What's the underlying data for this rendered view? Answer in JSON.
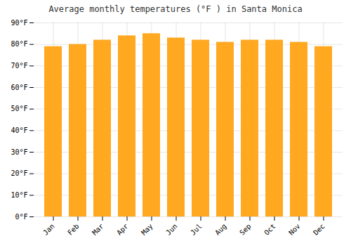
{
  "chart_data": {
    "type": "bar",
    "title": "Average monthly temperatures (°F ) in Santa Monica",
    "categories": [
      "Jan",
      "Feb",
      "Mar",
      "Apr",
      "May",
      "Jun",
      "Jul",
      "Aug",
      "Sep",
      "Oct",
      "Nov",
      "Dec"
    ],
    "values": [
      79,
      80,
      82,
      84,
      85,
      83,
      82,
      81,
      82,
      82,
      81,
      79
    ],
    "color": "#FFA820",
    "ylim": [
      0,
      90
    ],
    "yticks": [
      {
        "value": 0,
        "label": "0°F"
      },
      {
        "value": 10,
        "label": "10°F"
      },
      {
        "value": 20,
        "label": "20°F"
      },
      {
        "value": 30,
        "label": "30°F"
      },
      {
        "value": 40,
        "label": "40°F"
      },
      {
        "value": 50,
        "label": "50°F"
      },
      {
        "value": 60,
        "label": "60°F"
      },
      {
        "value": 70,
        "label": "70°F"
      },
      {
        "value": 80,
        "label": "80°F"
      },
      {
        "value": 90,
        "label": "90°F"
      }
    ],
    "grid": true
  }
}
